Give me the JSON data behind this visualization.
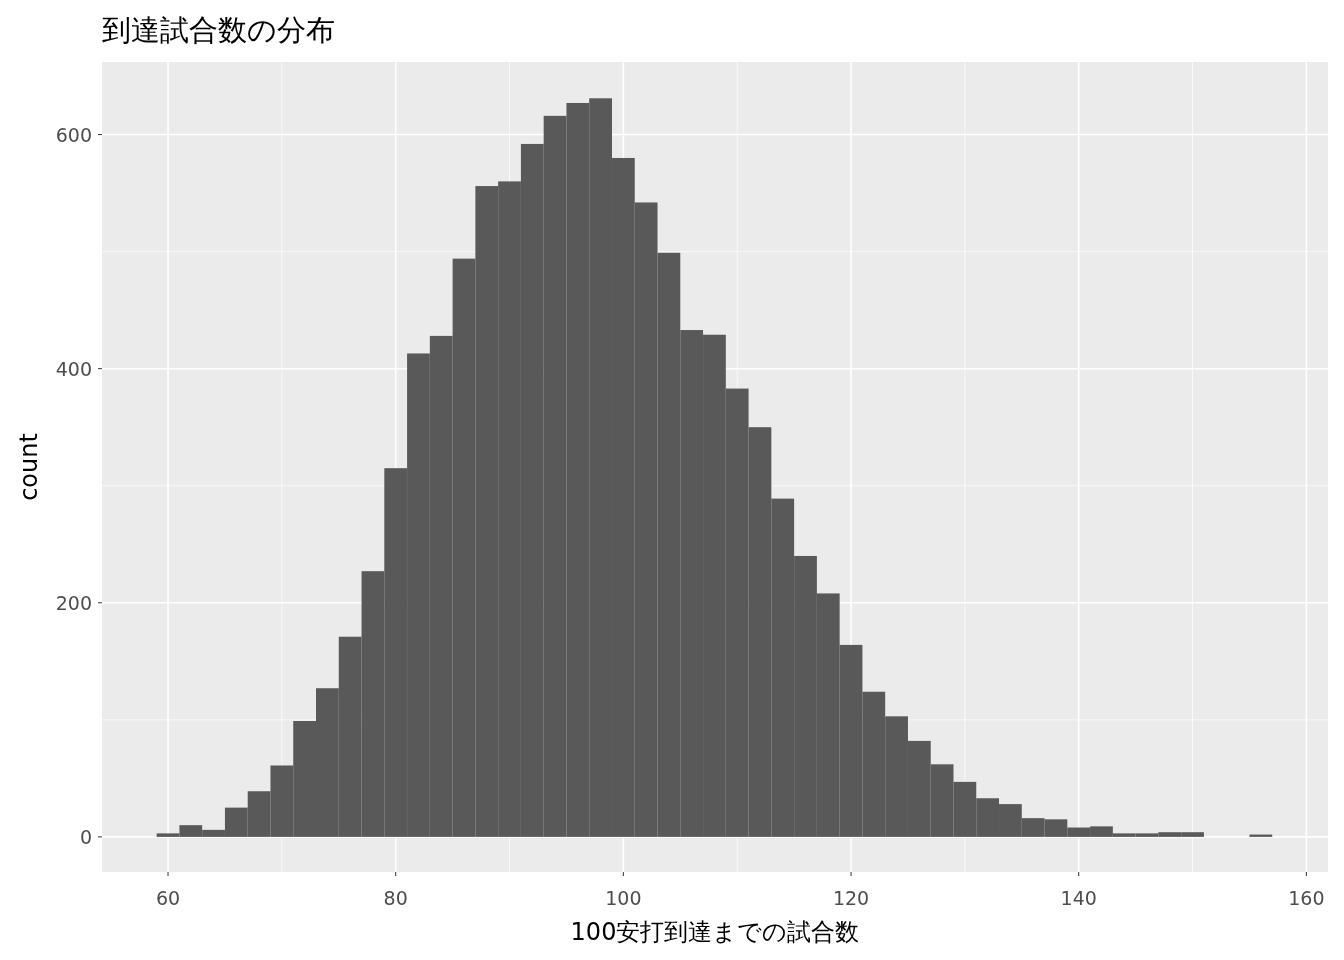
{
  "chart_data": {
    "type": "histogram",
    "title": "到達試合数の分布",
    "xlabel": "100安打到達までの試合数",
    "ylabel": "count",
    "color": "#595959",
    "bins": [
      59,
      61,
      63,
      65,
      67,
      69,
      71,
      73,
      75,
      77,
      79,
      81,
      83,
      85,
      87,
      89,
      91,
      93,
      95,
      97,
      99,
      101,
      103,
      105,
      107,
      109,
      111,
      113,
      115,
      117,
      119,
      121,
      123,
      125,
      127,
      129,
      131,
      133,
      135,
      137,
      139,
      141,
      143,
      145,
      147,
      149,
      151,
      153,
      155,
      157
    ],
    "values": [
      3,
      10,
      6,
      25,
      39,
      61,
      99,
      127,
      171,
      227,
      315,
      413,
      428,
      494,
      556,
      560,
      592,
      616,
      627,
      631,
      580,
      542,
      499,
      433,
      429,
      383,
      350,
      289,
      240,
      208,
      164,
      124,
      103,
      82,
      62,
      47,
      33,
      28,
      16,
      15,
      8,
      9,
      3,
      3,
      4,
      4,
      0,
      0,
      2
    ],
    "xlim": [
      54.2,
      161.9
    ],
    "ylim": [
      -30,
      662
    ],
    "xticks": [
      60,
      80,
      100,
      120,
      140,
      160
    ],
    "yticks": [
      0,
      200,
      400,
      600
    ],
    "grid": true
  }
}
